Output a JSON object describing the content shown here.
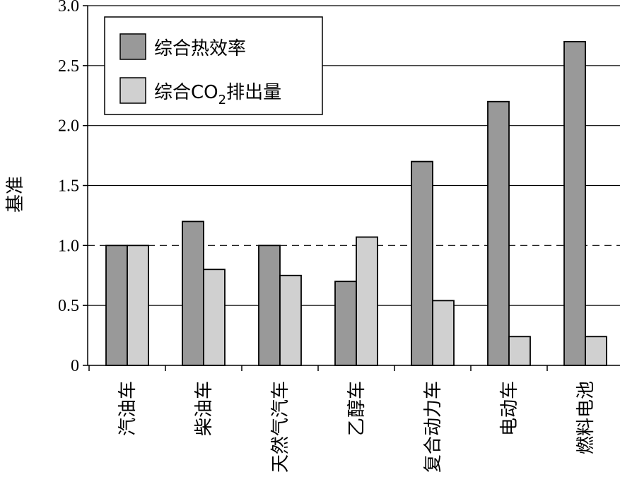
{
  "chart_data": {
    "type": "bar",
    "title": "",
    "xlabel": "",
    "ylabel": "基准",
    "ylim": [
      0,
      3.0
    ],
    "yticks": [
      "0",
      "0.5",
      "1.0",
      "1.5",
      "2.0",
      "2.5",
      "3.0"
    ],
    "grid": true,
    "reference_line": 1.0,
    "legend_position": "top-left",
    "categories": [
      "汽油车",
      "柴油车",
      "天然气汽车",
      "乙醇车",
      "复合动力车",
      "电动车",
      "燃料电池"
    ],
    "series": [
      {
        "name": "综合热效率",
        "color": "#999999",
        "values": [
          1.0,
          1.2,
          1.0,
          0.7,
          1.7,
          2.2,
          2.7
        ]
      },
      {
        "name": "综合CO2排出量",
        "name_parts": [
          "综合CO",
          "2",
          "排出量"
        ],
        "color": "#d0d0d0",
        "values": [
          1.0,
          0.8,
          0.75,
          1.07,
          0.54,
          0.24,
          0.24
        ]
      }
    ]
  }
}
